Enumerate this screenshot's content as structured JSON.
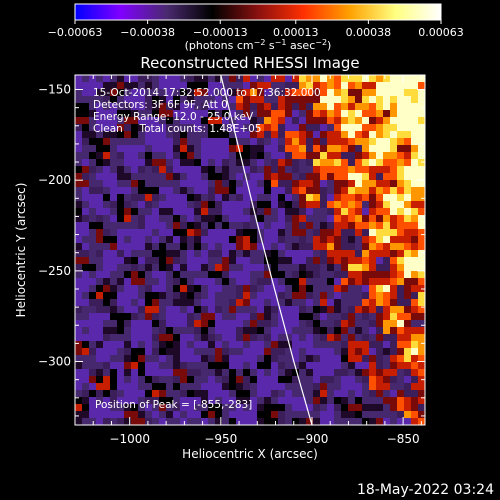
{
  "chart_data": {
    "type": "heatmap",
    "title": "Reconstructed RHESSI Image",
    "xlabel": "Heliocentric X (arcsec)",
    "ylabel": "Heliocentric Y (arcsec)",
    "xlim": [
      -1030,
      -838
    ],
    "ylim": [
      -335,
      -142
    ],
    "x_ticks": [
      -1000,
      -950,
      -900,
      -850
    ],
    "x_tick_labels": [
      "−1000",
      "−950",
      "−900",
      "−850"
    ],
    "y_ticks": [
      -150,
      -200,
      -250,
      -300
    ],
    "y_tick_labels": [
      "−150",
      "−200",
      "−250",
      "−300"
    ],
    "colorbar": {
      "range": [
        -0.00063,
        0.00063
      ],
      "ticks": [
        -0.00063,
        -0.00038,
        -0.00013,
        0.00013,
        0.00038,
        0.00063
      ],
      "tick_labels": [
        "−0.00063",
        "−0.00038",
        "−0.00013",
        "0.00013",
        "0.00038",
        "0.00063"
      ],
      "unit_prefix": "(photons cm",
      "unit_exp1": "−2",
      "unit_mid1": " s",
      "unit_exp2": "−1",
      "unit_mid2": " asec",
      "unit_exp3": "−2",
      "unit_suffix": ")",
      "colors": [
        "#0000ff",
        "#8000ff",
        "#4a2a70",
        "#000000",
        "#8a1010",
        "#ff3000",
        "#ffa000",
        "#ffff80",
        "#ffffff"
      ]
    },
    "annotations": [
      "15-Oct-2014 17:32:52.000 to 17:36:32.000",
      "Detectors: 3F 6F 9F, Att 0",
      "Energy Range: 12.0 - 25.0 keV",
      "Clean     Total counts: 1.48E+05"
    ],
    "peak_label": "Position of Peak = [-855,-283]",
    "limb_curve": {
      "x": [
        -950,
        -940,
        -930,
        -920,
        -910,
        -900
      ],
      "y": [
        -142,
        -183,
        -224,
        -262,
        -300,
        -335
      ]
    },
    "peak": [
      -855,
      -283
    ]
  },
  "footer": {
    "timestamp": "18-May-2022 03:24"
  }
}
